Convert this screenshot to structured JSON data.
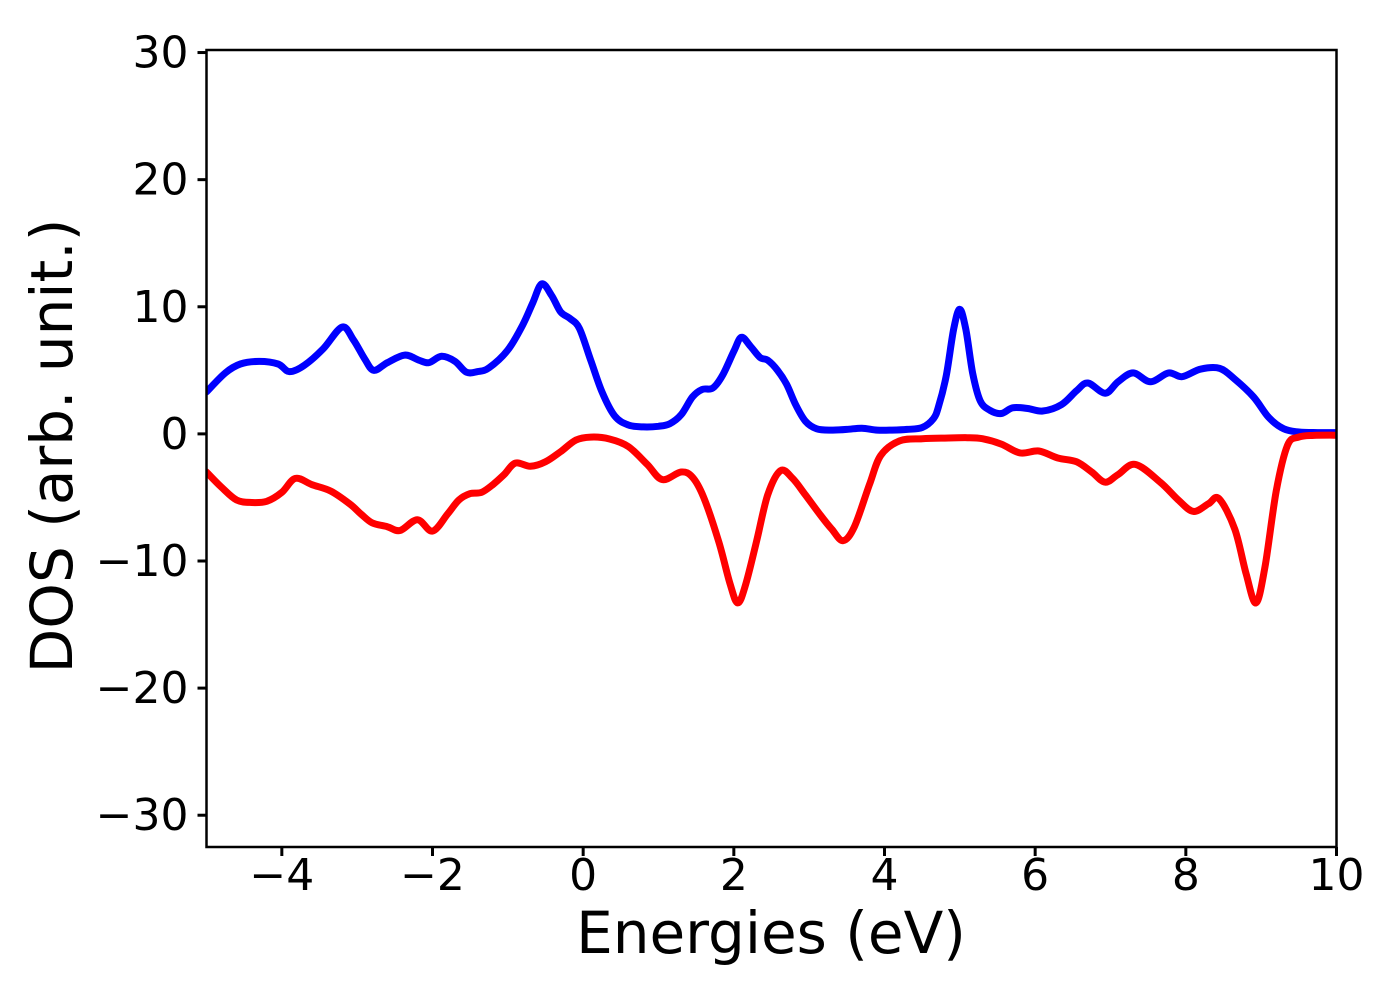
{
  "chart_data": {
    "type": "line",
    "title": "",
    "xlabel": "Energies (eV)",
    "ylabel": "DOS (arb. unit.)",
    "xlim": [
      -5,
      10
    ],
    "ylim": [
      -32.5,
      30.2
    ],
    "xticks": [
      -4,
      -2,
      0,
      2,
      4,
      6,
      8,
      10
    ],
    "yticks": [
      -30,
      -20,
      -10,
      0,
      10,
      20,
      30
    ],
    "grid": false,
    "legend": "none",
    "background": "#ffffff",
    "axis_color": "#000000",
    "series": [
      {
        "name": "blue-curve",
        "color": "#0000ff",
        "line_width": 7,
        "points": [
          [
            -5.0,
            3.3
          ],
          [
            -4.75,
            4.8
          ],
          [
            -4.55,
            5.5
          ],
          [
            -4.3,
            5.7
          ],
          [
            -4.05,
            5.5
          ],
          [
            -3.9,
            4.9
          ],
          [
            -3.7,
            5.4
          ],
          [
            -3.45,
            6.7
          ],
          [
            -3.2,
            8.4
          ],
          [
            -3.05,
            7.4
          ],
          [
            -2.9,
            5.9
          ],
          [
            -2.78,
            5.0
          ],
          [
            -2.6,
            5.6
          ],
          [
            -2.37,
            6.2
          ],
          [
            -2.18,
            5.8
          ],
          [
            -2.05,
            5.6
          ],
          [
            -1.88,
            6.1
          ],
          [
            -1.7,
            5.7
          ],
          [
            -1.55,
            4.85
          ],
          [
            -1.4,
            4.9
          ],
          [
            -1.25,
            5.2
          ],
          [
            -1.0,
            6.6
          ],
          [
            -0.8,
            8.6
          ],
          [
            -0.67,
            10.3
          ],
          [
            -0.55,
            11.8
          ],
          [
            -0.42,
            10.9
          ],
          [
            -0.3,
            9.6
          ],
          [
            -0.18,
            9.1
          ],
          [
            -0.05,
            8.3
          ],
          [
            0.1,
            5.8
          ],
          [
            0.25,
            3.3
          ],
          [
            0.42,
            1.4
          ],
          [
            0.6,
            0.7
          ],
          [
            0.8,
            0.55
          ],
          [
            1.0,
            0.6
          ],
          [
            1.15,
            0.8
          ],
          [
            1.3,
            1.5
          ],
          [
            1.45,
            2.9
          ],
          [
            1.58,
            3.5
          ],
          [
            1.72,
            3.6
          ],
          [
            1.85,
            4.6
          ],
          [
            2.0,
            6.5
          ],
          [
            2.1,
            7.6
          ],
          [
            2.22,
            6.9
          ],
          [
            2.35,
            6.0
          ],
          [
            2.45,
            5.8
          ],
          [
            2.58,
            5.0
          ],
          [
            2.7,
            3.9
          ],
          [
            2.82,
            2.3
          ],
          [
            2.95,
            1.0
          ],
          [
            3.1,
            0.4
          ],
          [
            3.3,
            0.3
          ],
          [
            3.5,
            0.35
          ],
          [
            3.7,
            0.45
          ],
          [
            3.9,
            0.3
          ],
          [
            4.1,
            0.3
          ],
          [
            4.3,
            0.35
          ],
          [
            4.5,
            0.5
          ],
          [
            4.65,
            1.2
          ],
          [
            4.72,
            2.2
          ],
          [
            4.82,
            4.6
          ],
          [
            4.92,
            8.3
          ],
          [
            5.0,
            9.8
          ],
          [
            5.08,
            8.2
          ],
          [
            5.17,
            4.8
          ],
          [
            5.27,
            2.6
          ],
          [
            5.4,
            1.85
          ],
          [
            5.55,
            1.6
          ],
          [
            5.7,
            2.05
          ],
          [
            5.9,
            2.0
          ],
          [
            6.1,
            1.8
          ],
          [
            6.35,
            2.3
          ],
          [
            6.55,
            3.4
          ],
          [
            6.7,
            4.0
          ],
          [
            6.93,
            3.2
          ],
          [
            7.1,
            4.1
          ],
          [
            7.3,
            4.8
          ],
          [
            7.53,
            4.1
          ],
          [
            7.77,
            4.8
          ],
          [
            7.95,
            4.5
          ],
          [
            8.2,
            5.1
          ],
          [
            8.45,
            5.15
          ],
          [
            8.65,
            4.3
          ],
          [
            8.9,
            2.9
          ],
          [
            9.1,
            1.3
          ],
          [
            9.3,
            0.4
          ],
          [
            9.5,
            0.15
          ],
          [
            9.75,
            0.1
          ],
          [
            10.0,
            0.1
          ]
        ]
      },
      {
        "name": "red-curve",
        "color": "#ff0000",
        "line_width": 7,
        "points": [
          [
            -5.0,
            -3.0
          ],
          [
            -4.8,
            -4.2
          ],
          [
            -4.6,
            -5.2
          ],
          [
            -4.4,
            -5.4
          ],
          [
            -4.2,
            -5.3
          ],
          [
            -4.0,
            -4.6
          ],
          [
            -3.82,
            -3.5
          ],
          [
            -3.6,
            -4.0
          ],
          [
            -3.35,
            -4.5
          ],
          [
            -3.1,
            -5.5
          ],
          [
            -2.95,
            -6.3
          ],
          [
            -2.8,
            -7.0
          ],
          [
            -2.6,
            -7.3
          ],
          [
            -2.43,
            -7.6
          ],
          [
            -2.2,
            -6.75
          ],
          [
            -2.0,
            -7.65
          ],
          [
            -1.8,
            -6.3
          ],
          [
            -1.65,
            -5.2
          ],
          [
            -1.5,
            -4.7
          ],
          [
            -1.35,
            -4.6
          ],
          [
            -1.2,
            -4.0
          ],
          [
            -1.05,
            -3.2
          ],
          [
            -0.9,
            -2.3
          ],
          [
            -0.7,
            -2.55
          ],
          [
            -0.5,
            -2.2
          ],
          [
            -0.3,
            -1.4
          ],
          [
            -0.1,
            -0.5
          ],
          [
            0.1,
            -0.25
          ],
          [
            0.35,
            -0.4
          ],
          [
            0.6,
            -1.0
          ],
          [
            0.85,
            -2.4
          ],
          [
            1.05,
            -3.6
          ],
          [
            1.3,
            -3.0
          ],
          [
            1.45,
            -3.4
          ],
          [
            1.6,
            -5.0
          ],
          [
            1.8,
            -8.5
          ],
          [
            1.95,
            -11.8
          ],
          [
            2.05,
            -13.3
          ],
          [
            2.15,
            -12.0
          ],
          [
            2.3,
            -8.5
          ],
          [
            2.45,
            -4.8
          ],
          [
            2.62,
            -2.9
          ],
          [
            2.78,
            -3.5
          ],
          [
            2.95,
            -4.8
          ],
          [
            3.15,
            -6.4
          ],
          [
            3.3,
            -7.5
          ],
          [
            3.45,
            -8.4
          ],
          [
            3.6,
            -7.3
          ],
          [
            3.8,
            -4.0
          ],
          [
            3.95,
            -1.7
          ],
          [
            4.2,
            -0.55
          ],
          [
            4.5,
            -0.38
          ],
          [
            4.8,
            -0.33
          ],
          [
            5.1,
            -0.3
          ],
          [
            5.3,
            -0.38
          ],
          [
            5.55,
            -0.8
          ],
          [
            5.8,
            -1.5
          ],
          [
            6.05,
            -1.35
          ],
          [
            6.3,
            -1.9
          ],
          [
            6.55,
            -2.2
          ],
          [
            6.75,
            -3.0
          ],
          [
            6.93,
            -3.8
          ],
          [
            7.1,
            -3.2
          ],
          [
            7.33,
            -2.4
          ],
          [
            7.66,
            -3.8
          ],
          [
            7.9,
            -5.2
          ],
          [
            8.1,
            -6.1
          ],
          [
            8.3,
            -5.5
          ],
          [
            8.44,
            -5.1
          ],
          [
            8.65,
            -7.5
          ],
          [
            8.8,
            -11.0
          ],
          [
            8.93,
            -13.3
          ],
          [
            9.05,
            -10.5
          ],
          [
            9.2,
            -4.5
          ],
          [
            9.35,
            -0.9
          ],
          [
            9.5,
            -0.25
          ],
          [
            9.7,
            -0.12
          ],
          [
            10.0,
            -0.1
          ]
        ]
      }
    ]
  }
}
